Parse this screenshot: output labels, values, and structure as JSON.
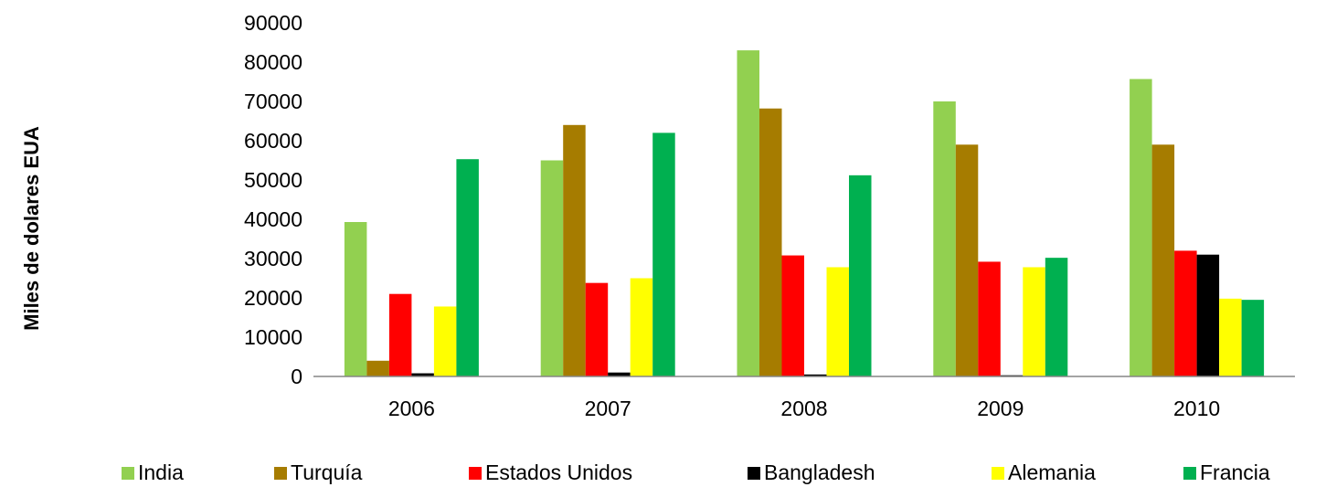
{
  "chart_data": {
    "type": "bar",
    "title": "",
    "xlabel": "",
    "ylabel": "Miles de dolares EUA",
    "categories": [
      "2006",
      "2007",
      "2008",
      "2009",
      "2010"
    ],
    "ylim": [
      0,
      90000
    ],
    "yticks": [
      "0",
      "10000",
      "20000",
      "30000",
      "40000",
      "50000",
      "60000",
      "70000",
      "80000",
      "90000"
    ],
    "grid": false,
    "legend_position": "bottom",
    "series": [
      {
        "name": "India",
        "color": "#92d050",
        "values": [
          39300,
          55000,
          83000,
          70000,
          75700
        ]
      },
      {
        "name": "Turquía",
        "color": "#a67c00",
        "values": [
          4000,
          64000,
          68200,
          59000,
          59000
        ]
      },
      {
        "name": "Estados Unidos",
        "color": "#ff0000",
        "values": [
          21000,
          23800,
          30800,
          29200,
          32000
        ]
      },
      {
        "name": "Bangladesh",
        "color": "#000000",
        "values": [
          800,
          1000,
          500,
          300,
          31000
        ]
      },
      {
        "name": "Alemania",
        "color": "#ffff00",
        "values": [
          17800,
          25000,
          27800,
          27800,
          19800
        ]
      },
      {
        "name": "Francia",
        "color": "#00b050",
        "values": [
          55300,
          62000,
          51200,
          30200,
          19500
        ]
      }
    ]
  }
}
